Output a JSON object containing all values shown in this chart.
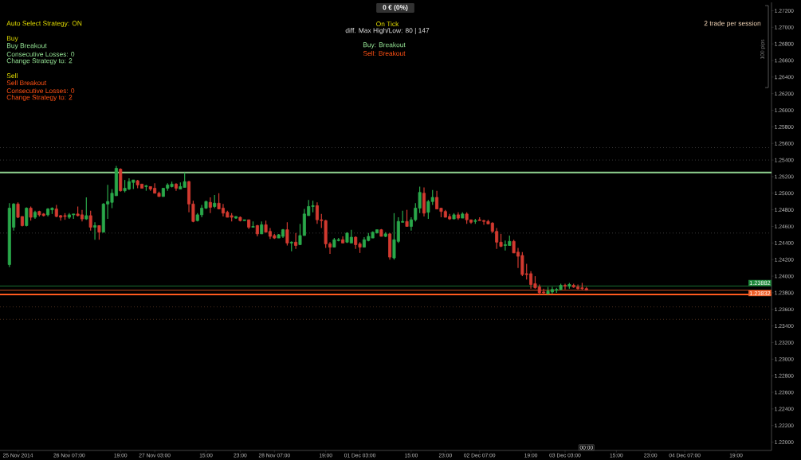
{
  "chart_data": {
    "type": "candlestick",
    "categories": [
      null,
      null,
      "25 Nov 2014",
      null,
      null,
      null,
      null,
      null,
      null,
      null,
      null,
      null,
      null,
      null,
      "26 Nov 07:00",
      null,
      null,
      null,
      null,
      null,
      null,
      null,
      null,
      null,
      null,
      null,
      "19:00",
      null,
      null,
      null,
      null,
      null,
      null,
      null,
      "27 Nov 03:00",
      null,
      null,
      null,
      null,
      null,
      null,
      null,
      null,
      null,
      null,
      null,
      "15:00",
      null,
      null,
      null,
      null,
      null,
      null,
      null,
      "23:00",
      null,
      null,
      null,
      null,
      null,
      null,
      null,
      "28 Nov 07:00",
      null,
      null,
      null,
      null,
      null,
      null,
      null,
      null,
      null,
      null,
      null,
      "19:00",
      null,
      null,
      null,
      null,
      null,
      null,
      null,
      "01 Dec 03:00",
      null,
      null,
      null,
      null,
      null,
      null,
      null,
      null,
      null,
      null,
      null,
      "15:00",
      null,
      null,
      null,
      null,
      null,
      null,
      null,
      "23:00",
      null,
      null,
      null,
      null,
      null,
      null,
      null,
      "02 Dec 07:00",
      null,
      null,
      null,
      null,
      null,
      null,
      null,
      null,
      null,
      null,
      null,
      "19:00",
      null,
      null,
      null,
      null,
      null,
      null,
      null,
      "03 Dec 03:00",
      null,
      null,
      null,
      null,
      null,
      null,
      null,
      null,
      null,
      null,
      null,
      "15:00",
      null,
      null,
      null,
      null,
      null,
      null,
      null,
      "23:00",
      null,
      null,
      null,
      null,
      null,
      null,
      null,
      "04 Dec 07:00",
      null,
      null,
      null,
      null,
      null,
      null,
      null,
      null,
      null,
      null,
      null,
      "19:00",
      null,
      null,
      null,
      null,
      null,
      null,
      null,
      null
    ],
    "ohlc": [
      [
        1.2414,
        1.2488,
        1.2411,
        1.2482
      ],
      [
        1.2459,
        1.2488,
        1.2455,
        1.2487
      ],
      [
        1.2487,
        1.2489,
        1.247,
        1.2471
      ],
      [
        1.2472,
        1.2472,
        1.246,
        1.2461
      ],
      [
        1.2461,
        1.2483,
        1.246,
        1.2482
      ],
      [
        1.2482,
        1.2484,
        1.2467,
        1.2471
      ],
      [
        1.2471,
        1.2479,
        1.2469,
        1.2477
      ],
      [
        1.2478,
        1.2479,
        1.2472,
        1.2474
      ],
      [
        1.2475,
        1.2476,
        1.2472,
        1.2473
      ],
      [
        1.2474,
        1.2482,
        1.2472,
        1.2481
      ],
      [
        1.248,
        1.2483,
        1.2475,
        1.2482
      ],
      [
        1.2481,
        1.2486,
        1.2471,
        1.2472
      ],
      [
        1.2473,
        1.2474,
        1.2467,
        1.2471
      ],
      [
        1.2473,
        1.2476,
        1.2468,
        1.2472
      ],
      [
        1.2471,
        1.2476,
        1.2469,
        1.2474
      ],
      [
        1.2474,
        1.2475,
        1.2469,
        1.2475
      ],
      [
        1.2475,
        1.2484,
        1.2472,
        1.2473
      ],
      [
        1.2474,
        1.248,
        1.2466,
        1.2469
      ],
      [
        1.2469,
        1.2495,
        1.2468,
        1.2473
      ],
      [
        1.2473,
        1.2479,
        1.2455,
        1.2459
      ],
      [
        1.2459,
        1.2465,
        1.2444,
        1.2461
      ],
      [
        1.2461,
        1.2461,
        1.2444,
        1.2453
      ],
      [
        1.2453,
        1.2488,
        1.2453,
        1.2487
      ],
      [
        1.2487,
        1.251,
        1.2469,
        1.249
      ],
      [
        1.2489,
        1.2505,
        1.2482,
        1.25
      ],
      [
        1.2497,
        1.2533,
        1.2497,
        1.253
      ],
      [
        1.2529,
        1.253,
        1.2502,
        1.2503
      ],
      [
        1.2503,
        1.2516,
        1.2501,
        1.2506
      ],
      [
        1.2505,
        1.2518,
        1.2504,
        1.2514
      ],
      [
        1.2513,
        1.2516,
        1.2505,
        1.2516
      ],
      [
        1.2515,
        1.2516,
        1.2506,
        1.251
      ],
      [
        1.2511,
        1.2511,
        1.2506,
        1.2506
      ],
      [
        1.2508,
        1.251,
        1.2503,
        1.2509
      ],
      [
        1.2508,
        1.2508,
        1.2503,
        1.2505
      ],
      [
        1.2506,
        1.2512,
        1.25,
        1.25
      ],
      [
        1.25,
        1.2502,
        1.2496,
        1.2496
      ],
      [
        1.2496,
        1.2506,
        1.2496,
        1.2506
      ],
      [
        1.2506,
        1.2512,
        1.2503,
        1.251
      ],
      [
        1.2508,
        1.2514,
        1.2507,
        1.2511
      ],
      [
        1.2511,
        1.2512,
        1.2503,
        1.2506
      ],
      [
        1.2505,
        1.2513,
        1.2505,
        1.2508
      ],
      [
        1.2507,
        1.2525,
        1.2507,
        1.2514
      ],
      [
        1.2514,
        1.2515,
        1.2477,
        1.2487
      ],
      [
        1.2487,
        1.2491,
        1.2465,
        1.2466
      ],
      [
        1.2467,
        1.2476,
        1.2466,
        1.2474
      ],
      [
        1.2474,
        1.2486,
        1.2471,
        1.2482
      ],
      [
        1.2482,
        1.2491,
        1.2481,
        1.249
      ],
      [
        1.2489,
        1.2495,
        1.2476,
        1.2483
      ],
      [
        1.2484,
        1.2498,
        1.2482,
        1.2488
      ],
      [
        1.2488,
        1.25,
        1.2481,
        1.2481
      ],
      [
        1.2482,
        1.2487,
        1.2472,
        1.2476
      ],
      [
        1.2477,
        1.2479,
        1.2471,
        1.2471
      ],
      [
        1.2473,
        1.2476,
        1.2466,
        1.2471
      ],
      [
        1.247,
        1.2472,
        1.2469,
        1.2472
      ],
      [
        1.2471,
        1.2472,
        1.2466,
        1.2467
      ],
      [
        1.2467,
        1.2468,
        1.2467,
        1.2468
      ],
      [
        1.2468,
        1.2468,
        1.2457,
        1.2459
      ],
      [
        1.2459,
        1.2466,
        1.2459,
        1.246
      ],
      [
        1.2461,
        1.2462,
        1.2448,
        1.2451
      ],
      [
        1.2451,
        1.2466,
        1.2451,
        1.2462
      ],
      [
        1.2462,
        1.2467,
        1.2453,
        1.2453
      ],
      [
        1.2454,
        1.2458,
        1.2445,
        1.2448
      ],
      [
        1.2449,
        1.2451,
        1.2445,
        1.2446
      ],
      [
        1.2446,
        1.2451,
        1.2446,
        1.245
      ],
      [
        1.2448,
        1.2457,
        1.2446,
        1.2456
      ],
      [
        1.2456,
        1.2465,
        1.2437,
        1.244
      ],
      [
        1.244,
        1.2442,
        1.243,
        1.2441
      ],
      [
        1.2441,
        1.2452,
        1.2433,
        1.2437
      ],
      [
        1.2438,
        1.2463,
        1.2438,
        1.2449
      ],
      [
        1.2449,
        1.2481,
        1.2449,
        1.2475
      ],
      [
        1.2473,
        1.2492,
        1.2473,
        1.2484
      ],
      [
        1.2484,
        1.2491,
        1.2477,
        1.2485
      ],
      [
        1.2485,
        1.2489,
        1.2463,
        1.2468
      ],
      [
        1.2468,
        1.2475,
        1.2458,
        1.2467
      ],
      [
        1.2467,
        1.2468,
        1.2434,
        1.2439
      ],
      [
        1.2439,
        1.2441,
        1.2427,
        1.2435
      ],
      [
        1.2435,
        1.2446,
        1.2435,
        1.2444
      ],
      [
        1.2443,
        1.2446,
        1.2442,
        1.2444
      ],
      [
        1.2444,
        1.2448,
        1.244,
        1.244
      ],
      [
        1.2441,
        1.2453,
        1.244,
        1.2452
      ],
      [
        1.244,
        1.2456,
        1.244,
        1.2447
      ],
      [
        1.2447,
        1.2448,
        1.2433,
        1.2438
      ],
      [
        1.2439,
        1.2441,
        1.2428,
        1.2435
      ],
      [
        1.2435,
        1.2447,
        1.2435,
        1.2444
      ],
      [
        1.2443,
        1.2452,
        1.2442,
        1.2448
      ],
      [
        1.2446,
        1.2454,
        1.2446,
        1.2453
      ],
      [
        1.2452,
        1.2456,
        1.2452,
        1.2456
      ],
      [
        1.2456,
        1.2457,
        1.2448,
        1.2448
      ],
      [
        1.2448,
        1.2453,
        1.2447,
        1.2451
      ],
      [
        1.2451,
        1.2452,
        1.242,
        1.2423
      ],
      [
        1.2422,
        1.2476,
        1.242,
        1.2444
      ],
      [
        1.2442,
        1.2471,
        1.244,
        1.2466
      ],
      [
        1.2465,
        1.2479,
        1.2465,
        1.2466
      ],
      [
        1.2466,
        1.248,
        1.246,
        1.246
      ],
      [
        1.246,
        1.2471,
        1.2455,
        1.2468
      ],
      [
        1.2468,
        1.2488,
        1.2466,
        1.2482
      ],
      [
        1.2482,
        1.2508,
        1.2476,
        1.2501
      ],
      [
        1.25,
        1.2507,
        1.2472,
        1.2476
      ],
      [
        1.2477,
        1.2492,
        1.2469,
        1.249
      ],
      [
        1.249,
        1.2504,
        1.2486,
        1.2495
      ],
      [
        1.2495,
        1.2503,
        1.2481,
        1.2481
      ],
      [
        1.2482,
        1.2482,
        1.2471,
        1.2478
      ],
      [
        1.2478,
        1.248,
        1.2471,
        1.2471
      ],
      [
        1.2472,
        1.2475,
        1.2468,
        1.2469
      ],
      [
        1.2469,
        1.2476,
        1.2469,
        1.2474
      ],
      [
        1.2474,
        1.2477,
        1.2468,
        1.247
      ],
      [
        1.247,
        1.2477,
        1.247,
        1.2475
      ],
      [
        1.2475,
        1.2477,
        1.2463,
        1.2468
      ],
      [
        1.2468,
        1.2468,
        1.2463,
        1.2465
      ],
      [
        1.2466,
        1.2469,
        1.2463,
        1.2467
      ],
      [
        1.2468,
        1.2471,
        1.2467,
        1.2467
      ],
      [
        1.2467,
        1.2468,
        1.2462,
        1.2466
      ],
      [
        1.2466,
        1.2468,
        1.2463,
        1.2463
      ],
      [
        1.2464,
        1.2465,
        1.2452,
        1.2454
      ],
      [
        1.2454,
        1.2458,
        1.2433,
        1.2441
      ],
      [
        1.2441,
        1.2451,
        1.2435,
        1.2436
      ],
      [
        1.2437,
        1.2443,
        1.2431,
        1.2438
      ],
      [
        1.2437,
        1.2449,
        1.2437,
        1.2442
      ],
      [
        1.2442,
        1.2444,
        1.2428,
        1.2428
      ],
      [
        1.2429,
        1.2434,
        1.241,
        1.2424
      ],
      [
        1.2425,
        1.2429,
        1.24,
        1.2402
      ],
      [
        1.2403,
        1.2415,
        1.2396,
        1.2402
      ],
      [
        1.2403,
        1.2406,
        1.2385,
        1.239
      ],
      [
        1.2391,
        1.24,
        1.2385,
        1.2386
      ],
      [
        1.2387,
        1.239,
        1.2378,
        1.238
      ],
      [
        1.2381,
        1.2385,
        1.2378,
        1.238
      ],
      [
        1.2379,
        1.2387,
        1.2378,
        1.2382
      ],
      [
        1.2381,
        1.2387,
        1.2379,
        1.2384
      ],
      [
        1.2383,
        1.2386,
        1.238,
        1.2384
      ],
      [
        1.2384,
        1.2391,
        1.2383,
        1.2389
      ],
      [
        1.2389,
        1.2391,
        1.2384,
        1.2388
      ],
      [
        1.2388,
        1.2392,
        1.2385,
        1.239
      ],
      [
        1.2389,
        1.2391,
        1.2386,
        1.2387
      ],
      [
        1.2387,
        1.239,
        1.2384,
        1.2385
      ],
      [
        1.2386,
        1.2392,
        1.2383,
        1.2385
      ],
      [
        1.2385,
        1.2387,
        1.2383,
        1.2383
      ],
      null,
      null,
      null,
      null,
      null,
      null,
      null,
      null,
      null,
      null,
      null,
      null,
      null,
      null,
      null,
      null,
      null,
      null,
      null,
      null,
      null,
      null,
      null,
      null,
      null,
      null,
      null,
      null,
      null,
      null,
      null,
      null,
      null,
      null,
      null,
      null,
      null,
      null,
      null,
      null,
      null,
      null,
      null
    ],
    "colors": [
      "#2aa84a",
      "#2aa84a",
      "#d23a30",
      "#d23a30",
      "#2aa84a",
      "#d23a30",
      "#2aa84a",
      "#d23a30",
      "#d23a30",
      "#2aa84a",
      "#2aa84a",
      "#d23a30",
      "#d23a30",
      "#d23a30",
      "#2aa84a",
      "#2aa84a",
      "#d23a30",
      "#d23a30",
      "#2aa84a",
      "#d23a30",
      "#2aa84a",
      "#d23a30",
      "#2aa84a",
      "#2aa84a",
      "#2aa84a",
      "#2aa84a",
      "#d23a30",
      "#2aa84a",
      "#2aa84a",
      "#2aa84a",
      "#d23a30",
      "#d23a30",
      "#2aa84a",
      "#d23a30",
      "#d23a30",
      "#d23a30",
      "#2aa84a",
      "#2aa84a",
      "#2aa84a",
      "#d23a30",
      "#2aa84a",
      "#2aa84a",
      "#d23a30",
      "#d23a30",
      "#2aa84a",
      "#2aa84a",
      "#2aa84a",
      "#d23a30",
      "#2aa84a",
      "#d23a30",
      "#d23a30",
      "#d23a30",
      "#d23a30",
      "#2aa84a",
      "#d23a30",
      "#2aa84a",
      "#d23a30",
      "#2aa84a",
      "#d23a30",
      "#2aa84a",
      "#d23a30",
      "#d23a30",
      "#d23a30",
      "#2aa84a",
      "#2aa84a",
      "#d23a30",
      "#2aa84a",
      "#d23a30",
      "#2aa84a",
      "#2aa84a",
      "#2aa84a",
      "#2aa84a",
      "#d23a30",
      "#d23a30",
      "#d23a30",
      "#d23a30",
      "#2aa84a",
      "#2aa84a",
      "#d23a30",
      "#2aa84a",
      "#2aa84a",
      "#d23a30",
      "#d23a30",
      "#2aa84a",
      "#2aa84a",
      "#2aa84a",
      "#2aa84a",
      "#d23a30",
      "#2aa84a",
      "#d23a30",
      "#2aa84a",
      "#2aa84a",
      "#2aa84a",
      "#d23a30",
      "#2aa84a",
      "#2aa84a",
      "#2aa84a",
      "#d23a30",
      "#2aa84a",
      "#2aa84a",
      "#d23a30",
      "#d23a30",
      "#d23a30",
      "#d23a30",
      "#2aa84a",
      "#d23a30",
      "#2aa84a",
      "#d23a30",
      "#d23a30",
      "#2aa84a",
      "#d23a30",
      "#d23a30",
      "#d23a30",
      "#d23a30",
      "#d23a30",
      "#d23a30",
      "#2aa84a",
      "#2aa84a",
      "#d23a30",
      "#d23a30",
      "#d23a30",
      "#d23a30",
      "#d23a30",
      "#d23a30",
      "#d23a30",
      "#d23a30",
      "#2aa84a",
      "#2aa84a",
      "#2aa84a",
      "#2aa84a",
      "#d23a30",
      "#2aa84a",
      "#d23a30",
      "#d23a30",
      "#d23a30",
      "#d23a30",
      null,
      null,
      null,
      null,
      null,
      null,
      null,
      null,
      null,
      null,
      null,
      null,
      null,
      null,
      null,
      null,
      null,
      null,
      null,
      null,
      null,
      null,
      null,
      null,
      null,
      null,
      null,
      null,
      null,
      null,
      null,
      null,
      null,
      null,
      null,
      null,
      null,
      null,
      null,
      null,
      null,
      null,
      null
    ],
    "ylim": [
      1.219,
      1.273
    ],
    "yticks": [
      {
        "value": 1.272,
        "label": "1.27200"
      },
      {
        "value": 1.27,
        "label": "1.27000"
      },
      {
        "value": 1.268,
        "label": "1.26800"
      },
      {
        "value": 1.266,
        "label": "1.26600"
      },
      {
        "value": 1.264,
        "label": "1.26400"
      },
      {
        "value": 1.262,
        "label": "1.26200"
      },
      {
        "value": 1.26,
        "label": "1.26000"
      },
      {
        "value": 1.258,
        "label": "1.25800"
      },
      {
        "value": 1.256,
        "label": "1.25600"
      },
      {
        "value": 1.254,
        "label": "1.25400"
      },
      {
        "value": 1.252,
        "label": "1.25200"
      },
      {
        "value": 1.25,
        "label": "1.25000"
      },
      {
        "value": 1.248,
        "label": "1.24800"
      },
      {
        "value": 1.246,
        "label": "1.24600"
      },
      {
        "value": 1.244,
        "label": "1.24400"
      },
      {
        "value": 1.242,
        "label": "1.24200"
      },
      {
        "value": 1.24,
        "label": "1.24000"
      },
      {
        "value": 1.238,
        "label": "1.23800"
      },
      {
        "value": 1.236,
        "label": "1.23600"
      },
      {
        "value": 1.234,
        "label": "1.23400"
      },
      {
        "value": 1.232,
        "label": "1.23200"
      },
      {
        "value": 1.23,
        "label": "1.23000"
      },
      {
        "value": 1.228,
        "label": "1.22800"
      },
      {
        "value": 1.226,
        "label": "1.22600"
      },
      {
        "value": 1.224,
        "label": "1.22400"
      },
      {
        "value": 1.222,
        "label": "1.22200"
      },
      {
        "value": 1.22,
        "label": "1.22000"
      }
    ],
    "ref_lines": [
      {
        "axis": "y",
        "value": 1.2555,
        "color": "#5a5a5a",
        "line_style": "dotted"
      },
      {
        "axis": "y",
        "value": 1.254,
        "color": "#5a5a5a",
        "line_style": "dotted"
      },
      {
        "axis": "y",
        "value": 1.2525,
        "color": "#8fd18f",
        "line_style": "solid"
      },
      {
        "axis": "y",
        "value": 1.2452,
        "color": "#5a5a5a",
        "line_style": "dotted"
      },
      {
        "axis": "y",
        "value": 1.23882,
        "color": "#1f8a3c",
        "line_style": "solid",
        "label": "1.23882"
      },
      {
        "axis": "y",
        "value": 1.23832,
        "color": "#f0602a",
        "line_style": "solid",
        "label": "1.23832"
      },
      {
        "axis": "y",
        "value": 1.2378,
        "color": "#ff5a1e",
        "line_style": "solid"
      },
      {
        "axis": "y",
        "value": 1.2363,
        "color": "#7a4a30",
        "line_style": "dotted"
      },
      {
        "axis": "y",
        "value": 1.2348,
        "color": "#7a4a30",
        "line_style": "dotted"
      }
    ],
    "annotations": [
      "Auto Select Strategy:  ON",
      "Buy",
      "Buy Breakout",
      "Consecutive Losses:  0",
      "Change Strategy  to:  2",
      "Sell",
      "Sell Breakout",
      "Consecutive Losses:  0",
      "Change Strategy  to:  2",
      "0 € (0%)",
      "On Tick",
      "diff. Max High/Low:  80 | 147",
      "Buy:  Breakout",
      "Sell:  Breakout",
      "2 trade per session",
      "100 pips",
      "00:00"
    ]
  }
}
